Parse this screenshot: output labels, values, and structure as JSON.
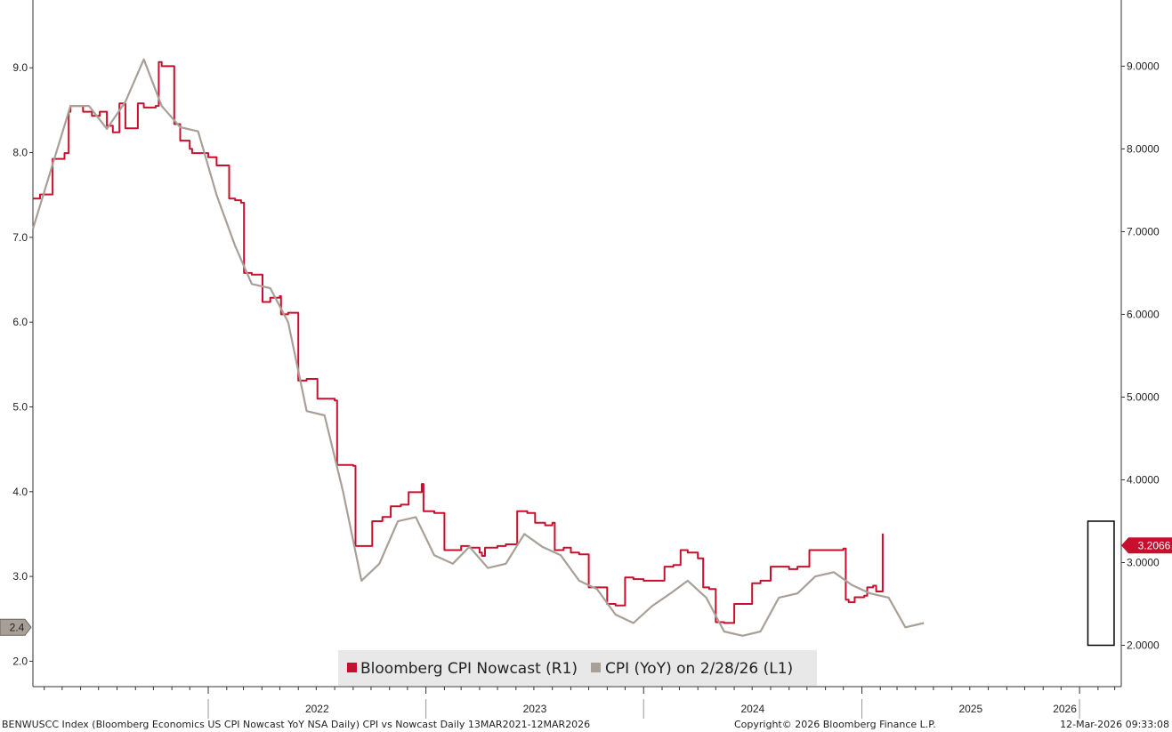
{
  "chart_data": {
    "type": "line",
    "title": "",
    "xlabel": "",
    "ylabel": "",
    "x_range": [
      "2021-03-13",
      "2026-03-12"
    ],
    "x_ticks": [
      {
        "label": "2022",
        "date": "2022-01-01"
      },
      {
        "label": "2023",
        "date": "2023-01-01"
      },
      {
        "label": "2024",
        "date": "2024-01-01"
      },
      {
        "label": "2025",
        "date": "2025-01-01"
      },
      {
        "label": "2026",
        "date": "2026-01-01"
      }
    ],
    "left_axis": {
      "range": [
        1.7,
        9.8
      ],
      "ticks": [
        "2.0",
        "3.0",
        "4.0",
        "5.0",
        "6.0",
        "7.0",
        "8.0",
        "9.0"
      ],
      "last_value_label": "2.4",
      "last_value": 2.4
    },
    "right_axis": {
      "range": [
        1.5,
        9.8
      ],
      "ticks": [
        "2.0000",
        "3.0000",
        "4.0000",
        "5.0000",
        "6.0000",
        "7.0000",
        "8.0000",
        "9.0000"
      ],
      "last_value_label": "3.2066",
      "last_value": 3.2066
    },
    "legend_position": "bottom-center",
    "grid": false,
    "series": [
      {
        "name": "Bloomberg CPI Nowcast (R1)",
        "axis": "right",
        "color": "#c8102e",
        "step": true,
        "points": [
          [
            "2021-03-13",
            7.4
          ],
          [
            "2021-03-25",
            7.45
          ],
          [
            "2021-04-15",
            7.88
          ],
          [
            "2021-05-05",
            7.95
          ],
          [
            "2021-05-12",
            8.45
          ],
          [
            "2021-05-15",
            8.52
          ],
          [
            "2021-06-05",
            8.45
          ],
          [
            "2021-06-20",
            8.4
          ],
          [
            "2021-07-03",
            8.45
          ],
          [
            "2021-07-15",
            8.28
          ],
          [
            "2021-07-25",
            8.2
          ],
          [
            "2021-08-05",
            8.55
          ],
          [
            "2021-08-15",
            8.25
          ],
          [
            "2021-09-05",
            8.55
          ],
          [
            "2021-09-15",
            8.5
          ],
          [
            "2021-10-05",
            8.52
          ],
          [
            "2021-10-10",
            9.05
          ],
          [
            "2021-10-15",
            9.0
          ],
          [
            "2021-11-01",
            9.0
          ],
          [
            "2021-11-05",
            8.3
          ],
          [
            "2021-11-15",
            8.1
          ],
          [
            "2021-12-01",
            8.0
          ],
          [
            "2021-12-05",
            7.95
          ],
          [
            "2022-01-01",
            7.9
          ],
          [
            "2022-01-05",
            7.9
          ],
          [
            "2022-01-15",
            7.8
          ],
          [
            "2022-02-05",
            7.4
          ],
          [
            "2022-02-15",
            7.38
          ],
          [
            "2022-02-25",
            7.35
          ],
          [
            "2022-03-02",
            6.5
          ],
          [
            "2022-03-15",
            6.48
          ],
          [
            "2022-04-02",
            6.15
          ],
          [
            "2022-04-15",
            6.2
          ],
          [
            "2022-05-01",
            6.22
          ],
          [
            "2022-05-03",
            6.0
          ],
          [
            "2022-05-15",
            6.02
          ],
          [
            "2022-06-01",
            5.2
          ],
          [
            "2022-06-15",
            5.22
          ],
          [
            "2022-07-03",
            4.98
          ],
          [
            "2022-07-15",
            4.98
          ],
          [
            "2022-08-01",
            4.96
          ],
          [
            "2022-08-05",
            4.18
          ],
          [
            "2022-08-20",
            4.18
          ],
          [
            "2022-09-01",
            4.17
          ],
          [
            "2022-09-05",
            3.2
          ],
          [
            "2022-09-20",
            3.2
          ],
          [
            "2022-10-01",
            3.2
          ],
          [
            "2022-10-03",
            3.5
          ],
          [
            "2022-10-20",
            3.55
          ],
          [
            "2022-11-03",
            3.68
          ],
          [
            "2022-11-20",
            3.7
          ],
          [
            "2022-12-03",
            3.85
          ],
          [
            "2022-12-15",
            3.85
          ],
          [
            "2022-12-25",
            3.95
          ],
          [
            "2022-12-28",
            3.62
          ],
          [
            "2023-01-15",
            3.6
          ],
          [
            "2023-01-30",
            3.6
          ],
          [
            "2023-02-01",
            3.15
          ],
          [
            "2023-02-15",
            3.15
          ],
          [
            "2023-03-01",
            3.2
          ],
          [
            "2023-03-15",
            3.18
          ],
          [
            "2023-04-01",
            3.12
          ],
          [
            "2023-04-05",
            3.08
          ],
          [
            "2023-04-10",
            3.18
          ],
          [
            "2023-05-01",
            3.2
          ],
          [
            "2023-05-15",
            3.22
          ],
          [
            "2023-06-03",
            3.62
          ],
          [
            "2023-06-20",
            3.6
          ],
          [
            "2023-07-03",
            3.48
          ],
          [
            "2023-07-20",
            3.45
          ],
          [
            "2023-08-01",
            3.48
          ],
          [
            "2023-08-05",
            3.15
          ],
          [
            "2023-08-20",
            3.18
          ],
          [
            "2023-09-01",
            3.12
          ],
          [
            "2023-09-15",
            3.1
          ],
          [
            "2023-10-01",
            2.7
          ],
          [
            "2023-10-15",
            2.7
          ],
          [
            "2023-11-01",
            2.5
          ],
          [
            "2023-11-15",
            2.48
          ],
          [
            "2023-12-01",
            2.82
          ],
          [
            "2023-12-15",
            2.8
          ],
          [
            "2024-01-01",
            2.78
          ],
          [
            "2024-02-01",
            2.78
          ],
          [
            "2024-02-05",
            2.95
          ],
          [
            "2024-02-20",
            2.97
          ],
          [
            "2024-03-03",
            3.15
          ],
          [
            "2024-03-15",
            3.12
          ],
          [
            "2024-04-01",
            3.05
          ],
          [
            "2024-04-10",
            2.7
          ],
          [
            "2024-04-20",
            2.68
          ],
          [
            "2024-05-01",
            2.28
          ],
          [
            "2024-05-15",
            2.27
          ],
          [
            "2024-06-01",
            2.5
          ],
          [
            "2024-06-15",
            2.5
          ],
          [
            "2024-07-01",
            2.75
          ],
          [
            "2024-07-15",
            2.78
          ],
          [
            "2024-08-01",
            2.95
          ],
          [
            "2024-08-20",
            2.95
          ],
          [
            "2024-09-01",
            2.92
          ],
          [
            "2024-09-15",
            2.95
          ],
          [
            "2024-10-05",
            3.15
          ],
          [
            "2024-10-20",
            3.15
          ],
          [
            "2024-11-15",
            3.15
          ],
          [
            "2024-12-01",
            3.17
          ],
          [
            "2024-12-05",
            2.55
          ],
          [
            "2024-12-10",
            2.52
          ],
          [
            "2024-12-20",
            2.58
          ],
          [
            "2025-01-05",
            2.6
          ],
          [
            "2025-01-10",
            2.7
          ],
          [
            "2025-01-20",
            2.72
          ],
          [
            "2025-01-25",
            2.65
          ],
          [
            "2025-02-03",
            2.65
          ],
          [
            "2025-02-05",
            3.35
          ]
        ]
      },
      {
        "name": "CPI (YoY) on 2/28/26 (L1)",
        "axis": "left",
        "color": "#a8a097",
        "step": false,
        "points": [
          [
            "2021-03-13",
            7.1
          ],
          [
            "2021-05-15",
            8.55
          ],
          [
            "2021-06-15",
            8.55
          ],
          [
            "2021-07-15",
            8.28
          ],
          [
            "2021-08-15",
            8.6
          ],
          [
            "2021-09-15",
            9.1
          ],
          [
            "2021-10-15",
            8.55
          ],
          [
            "2021-11-15",
            8.3
          ],
          [
            "2021-12-15",
            8.25
          ],
          [
            "2022-01-15",
            7.5
          ],
          [
            "2022-02-15",
            6.9
          ],
          [
            "2022-03-15",
            6.45
          ],
          [
            "2022-04-15",
            6.4
          ],
          [
            "2022-05-15",
            6.0
          ],
          [
            "2022-06-15",
            4.95
          ],
          [
            "2022-07-15",
            4.9
          ],
          [
            "2022-08-15",
            4.0
          ],
          [
            "2022-09-15",
            2.95
          ],
          [
            "2022-10-15",
            3.15
          ],
          [
            "2022-11-15",
            3.65
          ],
          [
            "2022-12-15",
            3.7
          ],
          [
            "2023-01-15",
            3.25
          ],
          [
            "2023-02-15",
            3.15
          ],
          [
            "2023-03-15",
            3.35
          ],
          [
            "2023-04-15",
            3.1
          ],
          [
            "2023-05-15",
            3.15
          ],
          [
            "2023-06-15",
            3.5
          ],
          [
            "2023-07-15",
            3.35
          ],
          [
            "2023-08-15",
            3.25
          ],
          [
            "2023-09-15",
            2.95
          ],
          [
            "2023-10-15",
            2.85
          ],
          [
            "2023-11-15",
            2.55
          ],
          [
            "2023-12-15",
            2.45
          ],
          [
            "2024-01-15",
            2.65
          ],
          [
            "2024-02-15",
            2.8
          ],
          [
            "2024-03-15",
            2.95
          ],
          [
            "2024-04-15",
            2.75
          ],
          [
            "2024-05-15",
            2.35
          ],
          [
            "2024-06-15",
            2.3
          ],
          [
            "2024-07-15",
            2.35
          ],
          [
            "2024-08-15",
            2.75
          ],
          [
            "2024-09-15",
            2.8
          ],
          [
            "2024-10-15",
            3.0
          ],
          [
            "2024-11-15",
            3.05
          ],
          [
            "2024-12-15",
            2.9
          ],
          [
            "2025-01-15",
            2.8
          ],
          [
            "2025-02-15",
            2.75
          ],
          [
            "2025-03-15",
            2.4
          ],
          [
            "2025-04-15",
            2.45
          ]
        ]
      }
    ],
    "annotation": {
      "type": "box",
      "from": "2026-01-15",
      "to": "2026-02-28",
      "y_range_right": [
        2.0,
        3.5
      ]
    }
  },
  "footer": {
    "source": "BENWUSCC Index (Bloomberg Economics US CPI Nowcast YoY NSA Daily) CPI vs Nowcast Daily 13MAR2021-12MAR2026",
    "copyright": "Copyright© 2026 Bloomberg Finance L.P.",
    "timestamp": "12-Mar-2026 09:33:08"
  },
  "colors": {
    "nowcast": "#c8102e",
    "cpi": "#a8a097",
    "axis": "#333333"
  }
}
